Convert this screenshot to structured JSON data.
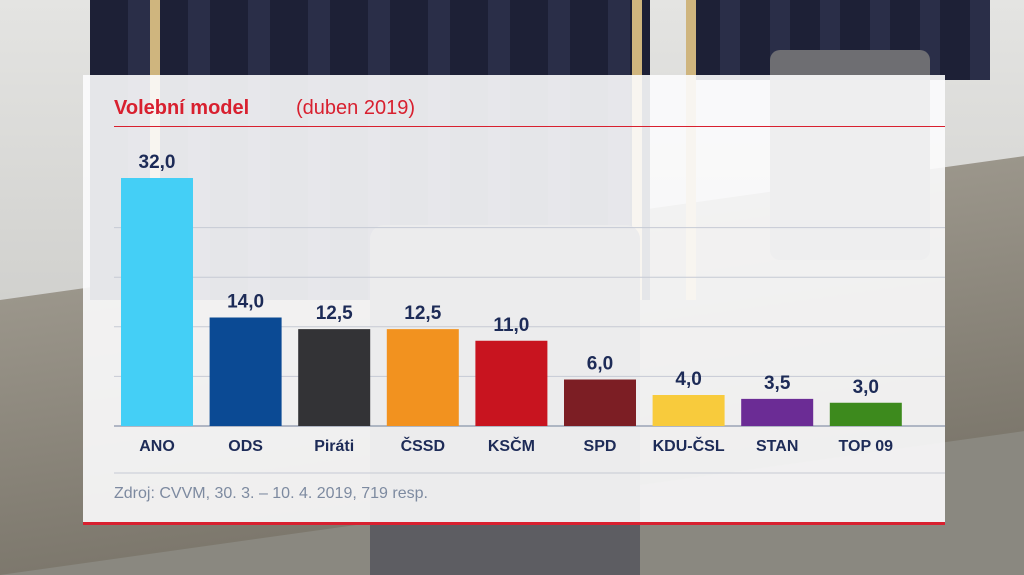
{
  "chart_data": {
    "type": "bar",
    "title": "Volební model",
    "subtitle": "(duben 2019)",
    "source": "Zdroj: CVVM, 30. 3. – 10. 4. 2019, 719 resp.",
    "categories": [
      "ANO",
      "ODS",
      "Piráti",
      "ČSSD",
      "KSČM",
      "SPD",
      "KDU-ČSL",
      "STAN",
      "TOP 09"
    ],
    "values": [
      32.0,
      14.0,
      12.5,
      12.5,
      11.0,
      6.0,
      4.0,
      3.5,
      3.0
    ],
    "value_labels": [
      "32,0",
      "14,0",
      "12,5",
      "12,5",
      "11,0",
      "6,0",
      "4,0",
      "3,5",
      "3,0"
    ],
    "colors": [
      "#44cff6",
      "#0b4a94",
      "#333336",
      "#f2921f",
      "#c8141f",
      "#7c1e24",
      "#f8cb3c",
      "#6b2c95",
      "#3d8a1d"
    ],
    "ylim": [
      0,
      32
    ],
    "gridlines": [
      0,
      6.4,
      12.8,
      19.2,
      25.6
    ],
    "grid": true,
    "accent": "#d8202f"
  }
}
